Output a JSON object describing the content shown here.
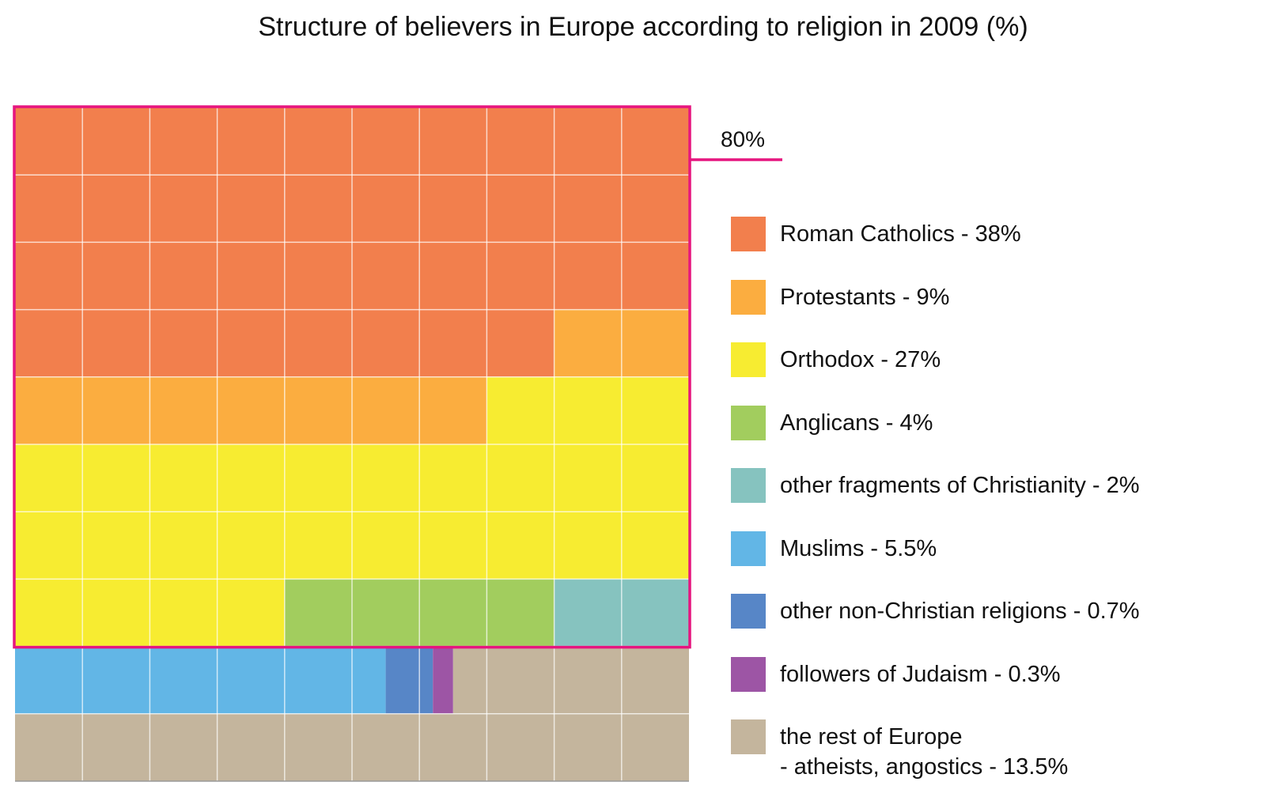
{
  "chart_data": {
    "type": "waffle",
    "title": "Structure of believers in Europe according to religion in 2009 (%)",
    "categories": [
      "Roman Catholics - 38%",
      "Protestants - 9%",
      "Orthodox - 27%",
      "Anglicans - 4%",
      "other fragments of Christianity - 2%",
      "Muslims - 5.5%",
      "other non-Christian religions - 0.7%",
      "followers of Judaism - 0.3%",
      "the rest of Europe\n- atheists, angostics - 13.5%"
    ],
    "values": [
      38,
      9,
      27,
      4,
      2,
      5.5,
      0.7,
      0.3,
      13.5
    ],
    "colors": [
      "#f27f4d",
      "#fbad40",
      "#f7ec31",
      "#a2cd5e",
      "#86c3bf",
      "#62b6e6",
      "#5786c7",
      "#9d55a5",
      "#c4b59d"
    ],
    "highlight": {
      "value": 80,
      "label": "80%",
      "color": "#e6157f"
    }
  }
}
